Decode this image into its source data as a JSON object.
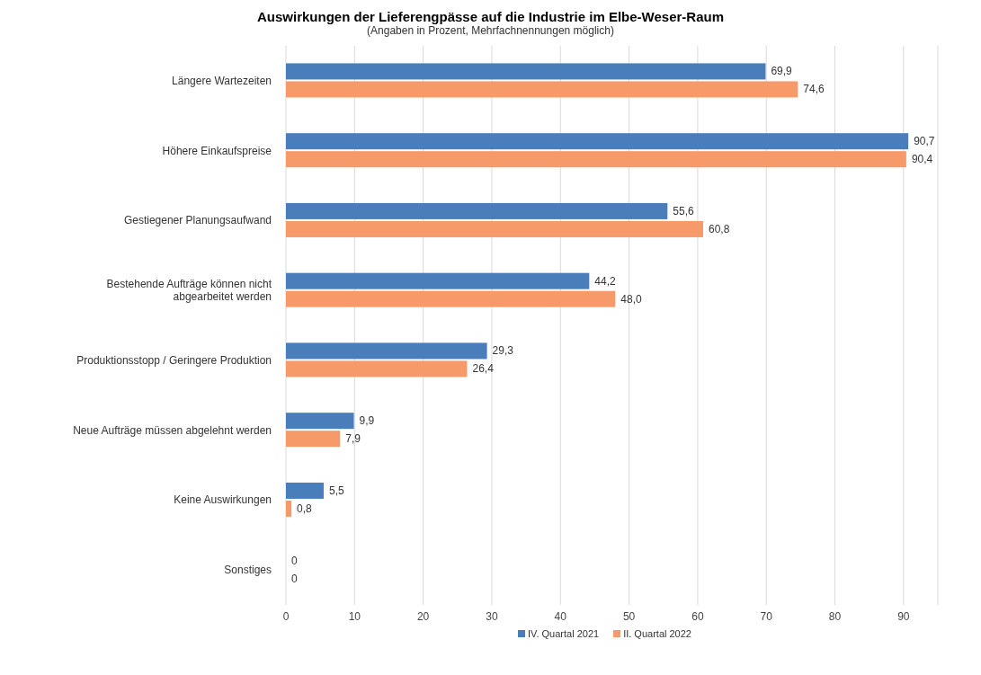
{
  "chart_data": {
    "type": "bar",
    "orientation": "horizontal",
    "title": "Auswirkungen der Lieferengpässe auf die Industrie im Elbe-Weser-Raum",
    "subtitle": "(Angaben in Prozent, Mehrfachnennungen möglich)",
    "categories": [
      "Längere Wartezeiten",
      "Höhere Einkaufspreise",
      "Gestiegener Planungsaufwand",
      "Bestehende Aufträge können nicht abgearbeitet werden",
      "Produktionsstopp / Geringere Produktion",
      "Neue Aufträge müssen abgelehnt werden",
      "Keine Auswirkungen",
      "Sonstiges"
    ],
    "series": [
      {
        "name": "IV. Quartal 2021",
        "color": "#4a7ebb",
        "values": [
          69.9,
          90.7,
          55.6,
          44.2,
          29.3,
          9.9,
          5.5,
          0
        ],
        "value_labels": [
          "69,9",
          "90,7",
          "55,6",
          "44,2",
          "29,3",
          "9,9",
          "5,5",
          "0"
        ]
      },
      {
        "name": "II. Quartal 2022",
        "color": "#f79a6a",
        "values": [
          74.6,
          90.4,
          60.8,
          48.0,
          26.4,
          7.9,
          0.8,
          0
        ],
        "value_labels": [
          "74,6",
          "90,4",
          "60,8",
          "48,0",
          "26,4",
          "7,9",
          "0,8",
          "0"
        ]
      }
    ],
    "xlim": [
      0,
      95
    ],
    "xticks": [
      0,
      10,
      20,
      30,
      40,
      50,
      60,
      70,
      80,
      90
    ],
    "grid": "x",
    "legend": "bottom"
  }
}
